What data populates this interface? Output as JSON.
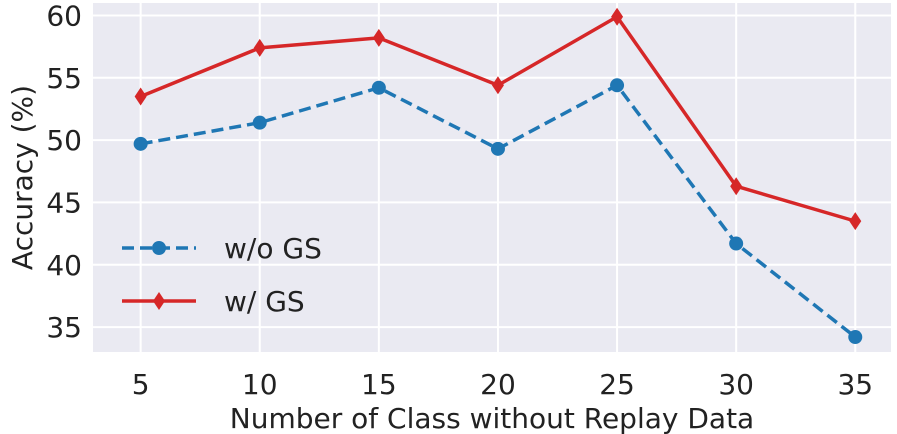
{
  "chart_data": {
    "type": "line",
    "title": "",
    "xlabel": "Number of Class without Replay Data",
    "ylabel": "Accuracy (%)",
    "x": [
      5,
      10,
      15,
      20,
      25,
      30,
      35
    ],
    "x_tick_labels": [
      "5",
      "10",
      "15",
      "20",
      "25",
      "30",
      "35"
    ],
    "y_ticks": [
      35,
      40,
      45,
      50,
      55,
      60
    ],
    "y_tick_labels": [
      "35",
      "40",
      "45",
      "50",
      "55",
      "60"
    ],
    "xlim": [
      3,
      36.5
    ],
    "ylim": [
      33,
      61
    ],
    "grid": true,
    "legend_position": "lower-left",
    "series": [
      {
        "name": "w/o GS",
        "values": [
          49.7,
          51.4,
          54.2,
          49.3,
          54.4,
          41.7,
          34.2
        ],
        "color": "#1f77b4",
        "line_style": "dashed",
        "marker": "circle"
      },
      {
        "name": "w/ GS",
        "values": [
          53.5,
          57.4,
          58.2,
          54.4,
          59.9,
          46.3,
          43.5
        ],
        "color": "#d62728",
        "line_style": "solid",
        "marker": "diamond"
      }
    ],
    "background_color": "#eaeaf2",
    "grid_color": "#ffffff"
  }
}
